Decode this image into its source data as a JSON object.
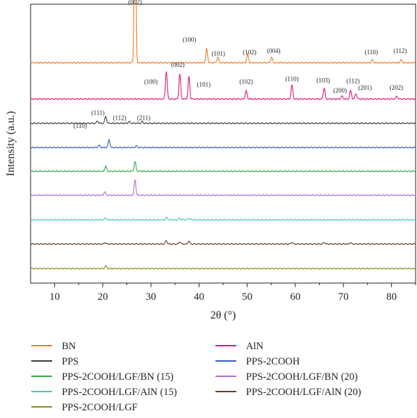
{
  "chart_data": {
    "type": "line",
    "xlabel": "2θ (°)",
    "ylabel": "Intensity (a.u.)",
    "xlim": [
      5,
      85
    ],
    "xticks": [
      10,
      20,
      30,
      40,
      50,
      60,
      70,
      80
    ],
    "series": [
      {
        "name": "BN",
        "color": "#f07823",
        "offset": 0.79,
        "peaks": [
          [
            26.7,
            0.81
          ],
          [
            41.6,
            0.05
          ],
          [
            43.9,
            0.02
          ],
          [
            50.1,
            0.03
          ],
          [
            55.1,
            0.02
          ],
          [
            76.0,
            0.01
          ],
          [
            82.0,
            0.01
          ]
        ]
      },
      {
        "name": "AlN",
        "color": "#e0157a",
        "offset": 0.66,
        "peaks": [
          [
            33.2,
            0.1
          ],
          [
            36.0,
            0.09
          ],
          [
            37.9,
            0.08
          ],
          [
            49.8,
            0.03
          ],
          [
            59.3,
            0.05
          ],
          [
            66.0,
            0.04
          ],
          [
            69.7,
            0.01
          ],
          [
            71.5,
            0.03
          ],
          [
            72.6,
            0.02
          ],
          [
            81.1,
            0.01
          ]
        ]
      },
      {
        "name": "PPS",
        "color": "#3a3a3a",
        "offset": 0.573,
        "peaks": [
          [
            18.9,
            0.008
          ],
          [
            20.6,
            0.025
          ],
          [
            25.5,
            0.006
          ],
          [
            28.2,
            0.006
          ]
        ]
      },
      {
        "name": "PPS-2COOH",
        "color": "#2f5ec0",
        "offset": 0.486,
        "peaks": [
          [
            19.2,
            0.008
          ],
          [
            21.3,
            0.028
          ],
          [
            27.0,
            0.006
          ]
        ]
      },
      {
        "name": "PPS-2COOH/LGF/BN (15)",
        "color": "#2eaa4a",
        "offset": 0.401,
        "peaks": [
          [
            20.6,
            0.018
          ],
          [
            26.7,
            0.034
          ]
        ]
      },
      {
        "name": "PPS-2COOH/LGF/BN (20)",
        "color": "#b06cc8",
        "offset": 0.315,
        "peaks": [
          [
            20.4,
            0.012
          ],
          [
            26.7,
            0.055
          ]
        ]
      },
      {
        "name": "PPS-2COOH/LGF/AlN (15)",
        "color": "#3fc8c0",
        "offset": 0.227,
        "peaks": [
          [
            20.5,
            0.006
          ],
          [
            33.2,
            0.008
          ],
          [
            36.0,
            0.006
          ],
          [
            37.9,
            0.006
          ]
        ]
      },
      {
        "name": "PPS-2COOH/LGF/AlN (20)",
        "color": "#6a3a28",
        "offset": 0.14,
        "peaks": [
          [
            20.5,
            0.005
          ],
          [
            33.2,
            0.012
          ],
          [
            36.0,
            0.008
          ],
          [
            37.9,
            0.01
          ],
          [
            59.3,
            0.006
          ],
          [
            66.0,
            0.006
          ],
          [
            71.5,
            0.005
          ]
        ]
      },
      {
        "name": "PPS-2COOH/LGF",
        "color": "#8a8a1a",
        "offset": 0.052,
        "peaks": [
          [
            20.6,
            0.01
          ]
        ]
      }
    ],
    "annotations": [
      {
        "text": "(002)",
        "x": 26.7,
        "y": 1.0
      },
      {
        "text": "(100)",
        "x": 38.0,
        "y": 0.865
      },
      {
        "text": "(101)",
        "x": 44.0,
        "y": 0.815
      },
      {
        "text": "(102)",
        "x": 50.5,
        "y": 0.82
      },
      {
        "text": "(004)",
        "x": 55.5,
        "y": 0.825
      },
      {
        "text": "(110)",
        "x": 75.8,
        "y": 0.82
      },
      {
        "text": "(112)",
        "x": 81.8,
        "y": 0.825
      },
      {
        "text": "(100)",
        "x": 30.0,
        "y": 0.715
      },
      {
        "text": "(002)",
        "x": 35.6,
        "y": 0.775
      },
      {
        "text": "(101)",
        "x": 41.0,
        "y": 0.705
      },
      {
        "text": "(102)",
        "x": 49.8,
        "y": 0.715
      },
      {
        "text": "(110)",
        "x": 59.3,
        "y": 0.725
      },
      {
        "text": "(103)",
        "x": 65.8,
        "y": 0.72
      },
      {
        "text": "(200)",
        "x": 69.3,
        "y": 0.683
      },
      {
        "text": "(112)",
        "x": 72.0,
        "y": 0.717
      },
      {
        "text": "(201)",
        "x": 74.5,
        "y": 0.693
      },
      {
        "text": "(202)",
        "x": 81.0,
        "y": 0.693
      },
      {
        "text": "(110)",
        "x": 15.3,
        "y": 0.556
      },
      {
        "text": "(111)",
        "x": 19.0,
        "y": 0.604
      },
      {
        "text": "(112)",
        "x": 23.5,
        "y": 0.585
      },
      {
        "text": "(211)",
        "x": 28.5,
        "y": 0.585
      }
    ],
    "legend": {
      "placement": "bottom",
      "columns": 2
    }
  }
}
